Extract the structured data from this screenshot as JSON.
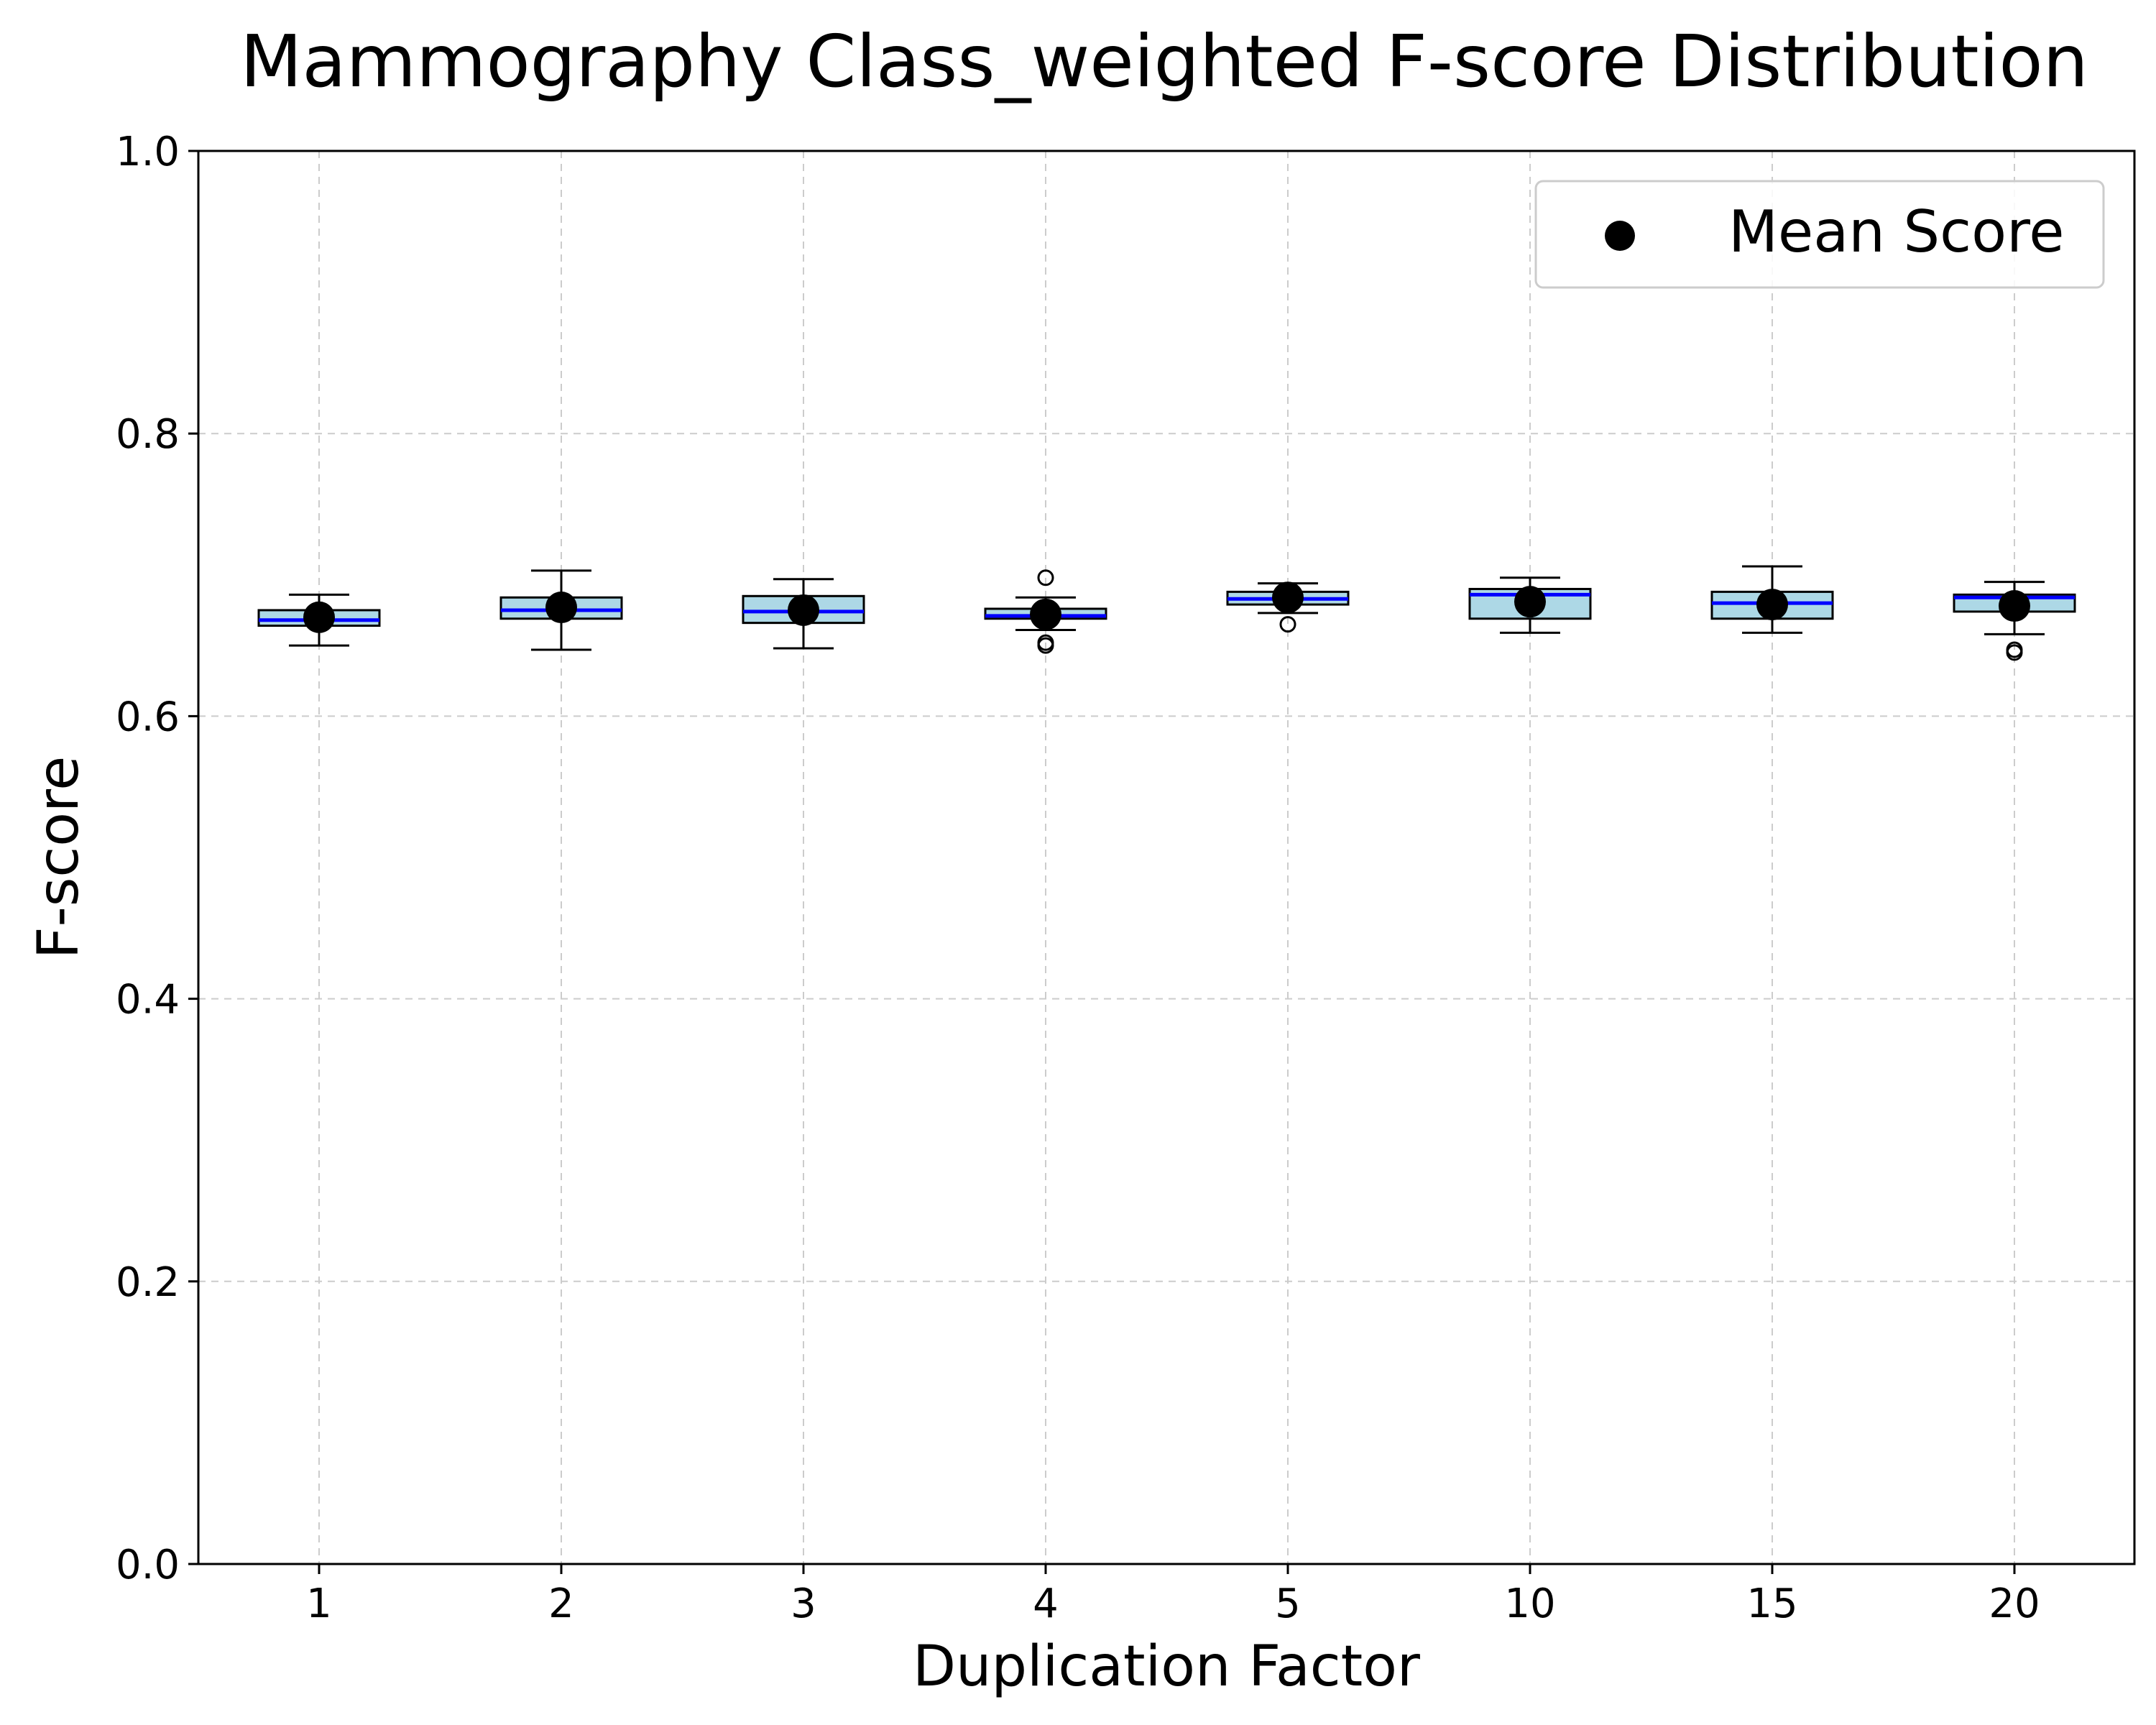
{
  "chart_data": {
    "type": "box",
    "title": "Mammography Class_weighted F-score Distribution",
    "xlabel": "Duplication Factor",
    "ylabel": "F-score",
    "ylim": [
      0.0,
      1.0
    ],
    "yticks": [
      "0.0",
      "0.2",
      "0.4",
      "0.6",
      "0.8",
      "1.0"
    ],
    "grid": true,
    "legend": {
      "placement": "top-right",
      "label": "Mean Score"
    },
    "colors": {
      "box_fill": "#add8e6",
      "median": "#0000ff",
      "mean_marker": "#000000",
      "grid": "#cccccc"
    },
    "categories": [
      "1",
      "2",
      "3",
      "4",
      "5",
      "10",
      "15",
      "20"
    ],
    "boxes": [
      {
        "whisker_low": 0.65,
        "q1": 0.664,
        "median": 0.668,
        "q3": 0.675,
        "whisker_high": 0.686,
        "mean": 0.67,
        "outliers": []
      },
      {
        "whisker_low": 0.647,
        "q1": 0.669,
        "median": 0.675,
        "q3": 0.684,
        "whisker_high": 0.703,
        "mean": 0.677,
        "outliers": []
      },
      {
        "whisker_low": 0.648,
        "q1": 0.666,
        "median": 0.674,
        "q3": 0.685,
        "whisker_high": 0.697,
        "mean": 0.675,
        "outliers": []
      },
      {
        "whisker_low": 0.661,
        "q1": 0.669,
        "median": 0.671,
        "q3": 0.676,
        "whisker_high": 0.684,
        "mean": 0.672,
        "outliers": [
          0.698,
          0.652,
          0.65
        ]
      },
      {
        "whisker_low": 0.673,
        "q1": 0.679,
        "median": 0.683,
        "q3": 0.688,
        "whisker_high": 0.694,
        "mean": 0.684,
        "outliers": [
          0.665
        ]
      },
      {
        "whisker_low": 0.659,
        "q1": 0.669,
        "median": 0.686,
        "q3": 0.69,
        "whisker_high": 0.698,
        "mean": 0.681,
        "outliers": []
      },
      {
        "whisker_low": 0.659,
        "q1": 0.669,
        "median": 0.68,
        "q3": 0.688,
        "whisker_high": 0.706,
        "mean": 0.679,
        "outliers": []
      },
      {
        "whisker_low": 0.658,
        "q1": 0.674,
        "median": 0.684,
        "q3": 0.686,
        "whisker_high": 0.695,
        "mean": 0.678,
        "outliers": [
          0.647,
          0.645
        ]
      }
    ]
  }
}
